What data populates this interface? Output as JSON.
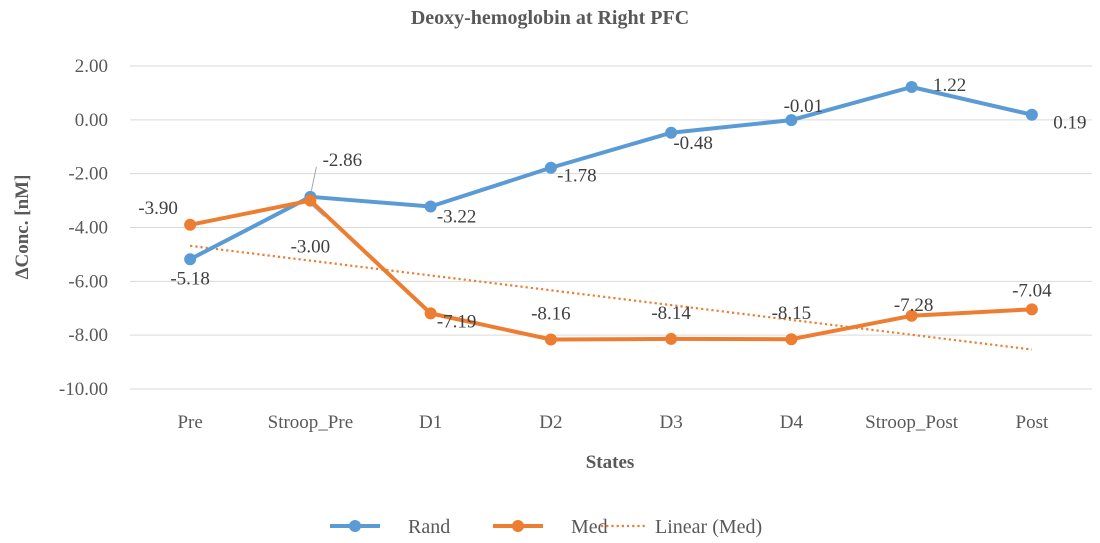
{
  "chart_data": {
    "type": "line",
    "title": "Deoxy-hemoglobin  at Right PFC",
    "xlabel": "States",
    "ylabel": "ΔConc. [nM]",
    "categories": [
      "Pre",
      "Stroop_Pre",
      "D1",
      "D2",
      "D3",
      "D4",
      "Stroop_Post",
      "Post"
    ],
    "ylim": [
      -10,
      2
    ],
    "yticks": [
      2,
      0,
      -2,
      -4,
      -6,
      -8,
      -10
    ],
    "ytick_labels": [
      "2.00",
      "0.00",
      "-2.00",
      "-4.00",
      "-6.00",
      "-8.00",
      "-10.00"
    ],
    "series": [
      {
        "name": "Rand",
        "color": "#5b9bd5",
        "values": [
          -5.18,
          -2.86,
          -3.22,
          -1.78,
          -0.48,
          -0.01,
          1.22,
          0.19
        ],
        "labels": [
          "-5.18",
          "-2.86",
          "-3.22",
          "-1.78",
          "-0.48",
          "-0.01",
          "1.22",
          "0.19"
        ]
      },
      {
        "name": "Med",
        "color": "#ed7d31",
        "values": [
          -3.9,
          -3.0,
          -7.19,
          -8.16,
          -8.14,
          -8.15,
          -7.28,
          -7.04
        ],
        "labels": [
          "-3.90",
          "-3.00",
          "-7.19",
          "-8.16",
          "-8.14",
          "-8.15",
          "-7.28",
          "-7.04"
        ]
      }
    ],
    "trendline": {
      "name": "Linear (Med)",
      "of": "Med",
      "color": "#ed7d31",
      "style": "dotted"
    },
    "legend": {
      "position": "bottom",
      "entries": [
        "Rand",
        "Med",
        "Linear (Med)"
      ]
    }
  }
}
